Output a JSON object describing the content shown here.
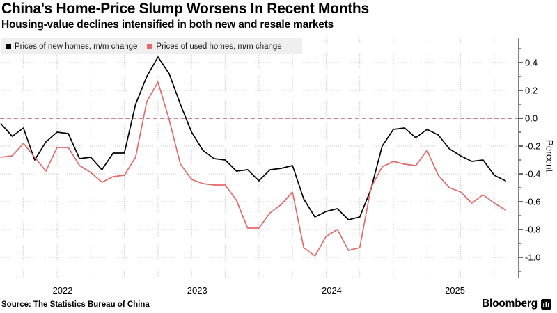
{
  "header": {
    "title": "China's Home-Price Slump Worsens In Recent Months",
    "subtitle": "Housing-value declines intensified in both new and resale markets"
  },
  "legend": [
    {
      "label": "Prices of new homes, m/m change",
      "color": "#000000"
    },
    {
      "label": "Prices of used homes, m/m change",
      "color": "#e26a69"
    }
  ],
  "footer": {
    "source": "Source: The Statistics Bureau of China",
    "brand": "Bloomberg"
  },
  "chart_data": {
    "type": "line",
    "title": "China's Home-Price Slump Worsens In Recent Months",
    "subtitle": "Housing-value declines intensified in both new and resale markets",
    "ylabel": "Percent",
    "ylim": [
      -1.15,
      0.575
    ],
    "y_ticks_major": [
      0.4,
      0.2,
      0.0,
      -0.2,
      -0.4,
      -0.6,
      -0.8,
      -1.0
    ],
    "y_ticks_minor": [
      0.5,
      0.3,
      0.1,
      -0.1,
      -0.3,
      -0.5,
      -0.7,
      -0.9,
      -1.1
    ],
    "x_year_labels": [
      "2022",
      "2023",
      "2024",
      "2025"
    ],
    "grid": "dotted",
    "grid_color": "#c9c9c9",
    "zero_line": {
      "value": 0.0,
      "style": "dashed",
      "color": "#b23b49"
    },
    "legend_position": "top-left",
    "categories": [
      "2022-01",
      "2022-02",
      "2022-03",
      "2022-04",
      "2022-05",
      "2022-06",
      "2022-07",
      "2022-08",
      "2022-09",
      "2022-10",
      "2022-11",
      "2022-12",
      "2023-01",
      "2023-02",
      "2023-03",
      "2023-04",
      "2023-05",
      "2023-06",
      "2023-07",
      "2023-08",
      "2023-09",
      "2023-10",
      "2023-11",
      "2023-12",
      "2024-01",
      "2024-02",
      "2024-03",
      "2024-04",
      "2024-05",
      "2024-06",
      "2024-07",
      "2024-08",
      "2024-09",
      "2024-10",
      "2024-11",
      "2024-12",
      "2025-01",
      "2025-02",
      "2025-03",
      "2025-04",
      "2025-05",
      "2025-06",
      "2025-07",
      "2025-08",
      "2025-09",
      "2025-10"
    ],
    "series": [
      {
        "name": "Prices of new homes, m/m change",
        "color": "#000000",
        "values": [
          -0.04,
          -0.13,
          -0.07,
          -0.3,
          -0.17,
          -0.1,
          -0.11,
          -0.29,
          -0.28,
          -0.37,
          -0.25,
          -0.25,
          0.1,
          0.3,
          0.44,
          0.32,
          0.1,
          -0.1,
          -0.23,
          -0.29,
          -0.3,
          -0.38,
          -0.37,
          -0.45,
          -0.37,
          -0.36,
          -0.34,
          -0.58,
          -0.71,
          -0.67,
          -0.65,
          -0.73,
          -0.71,
          -0.51,
          -0.2,
          -0.08,
          -0.07,
          -0.14,
          -0.08,
          -0.12,
          -0.22,
          -0.27,
          -0.31,
          -0.3,
          -0.41,
          -0.45
        ]
      },
      {
        "name": "Prices of used homes, m/m change",
        "color": "#e26a69",
        "values": [
          -0.28,
          -0.27,
          -0.18,
          -0.28,
          -0.38,
          -0.21,
          -0.21,
          -0.34,
          -0.39,
          -0.46,
          -0.42,
          -0.41,
          -0.28,
          0.12,
          0.26,
          -0.01,
          -0.33,
          -0.44,
          -0.47,
          -0.48,
          -0.48,
          -0.59,
          -0.79,
          -0.79,
          -0.68,
          -0.62,
          -0.53,
          -0.93,
          -0.99,
          -0.85,
          -0.8,
          -0.95,
          -0.93,
          -0.5,
          -0.35,
          -0.31,
          -0.33,
          -0.34,
          -0.23,
          -0.41,
          -0.5,
          -0.53,
          -0.61,
          -0.55,
          -0.61,
          -0.66
        ]
      }
    ]
  }
}
